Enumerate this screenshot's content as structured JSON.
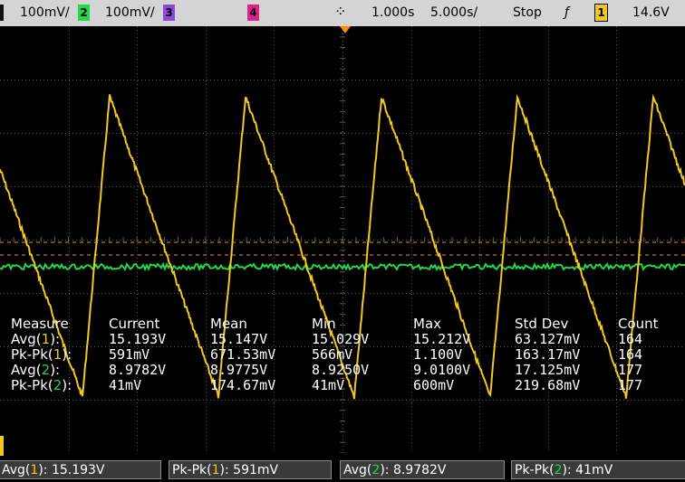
{
  "top_bar": {
    "ch1_scale": "100mV/",
    "ch2_number": "2",
    "ch2_scale": "100mV/",
    "ch3_number": "3",
    "ch4_number": "4",
    "time_delay": "1.000s",
    "time_scale": "5.000s/",
    "run_state": "Stop",
    "trigger_channel": "1",
    "trigger_level": "14.6V"
  },
  "measurements": {
    "headers": [
      "Measure",
      "Current",
      "Mean",
      "Min",
      "Max",
      "Std Dev",
      "Count"
    ],
    "rows": [
      {
        "name_prefix": "Avg(",
        "channel": "1",
        "name_suffix": "):",
        "current": "15.193V",
        "mean": "15.147V",
        "min": "15.029V",
        "max": "15.212V",
        "std_dev": "63.127mV",
        "count": "164"
      },
      {
        "name_prefix": "Pk-Pk(",
        "channel": "1",
        "name_suffix": "):",
        "current": "591mV",
        "mean": "671.53mV",
        "min": "566mV",
        "max": "1.100V",
        "std_dev": "163.17mV",
        "count": "164"
      },
      {
        "name_prefix": "Avg(",
        "channel": "2",
        "name_suffix": "):",
        "current": "8.9782V",
        "mean": "8.9775V",
        "min": "8.9250V",
        "max": "9.0100V",
        "std_dev": "17.125mV",
        "count": "177"
      },
      {
        "name_prefix": "Pk-Pk(",
        "channel": "2",
        "name_suffix": "):",
        "current": "41mV",
        "mean": "174.67mV",
        "min": "41mV",
        "max": "600mV",
        "std_dev": "219.68mV",
        "count": "177"
      }
    ]
  },
  "bottom_bar": [
    {
      "prefix": "Avg(",
      "channel": "1",
      "suffix": "): 15.193V"
    },
    {
      "prefix": "Pk-Pk(",
      "channel": "1",
      "suffix": "): 591mV"
    },
    {
      "prefix": "Avg(",
      "channel": "2",
      "suffix": "): 8.9782V"
    },
    {
      "prefix": "Pk-Pk(",
      "channel": "2",
      "suffix": "): 41mV"
    }
  ],
  "colors": {
    "ch1": "#f2c81d",
    "ch2": "#22d84a",
    "ch3": "#8a4bd8",
    "ch4": "#e0208c",
    "grid": "#5a5a5a"
  }
}
